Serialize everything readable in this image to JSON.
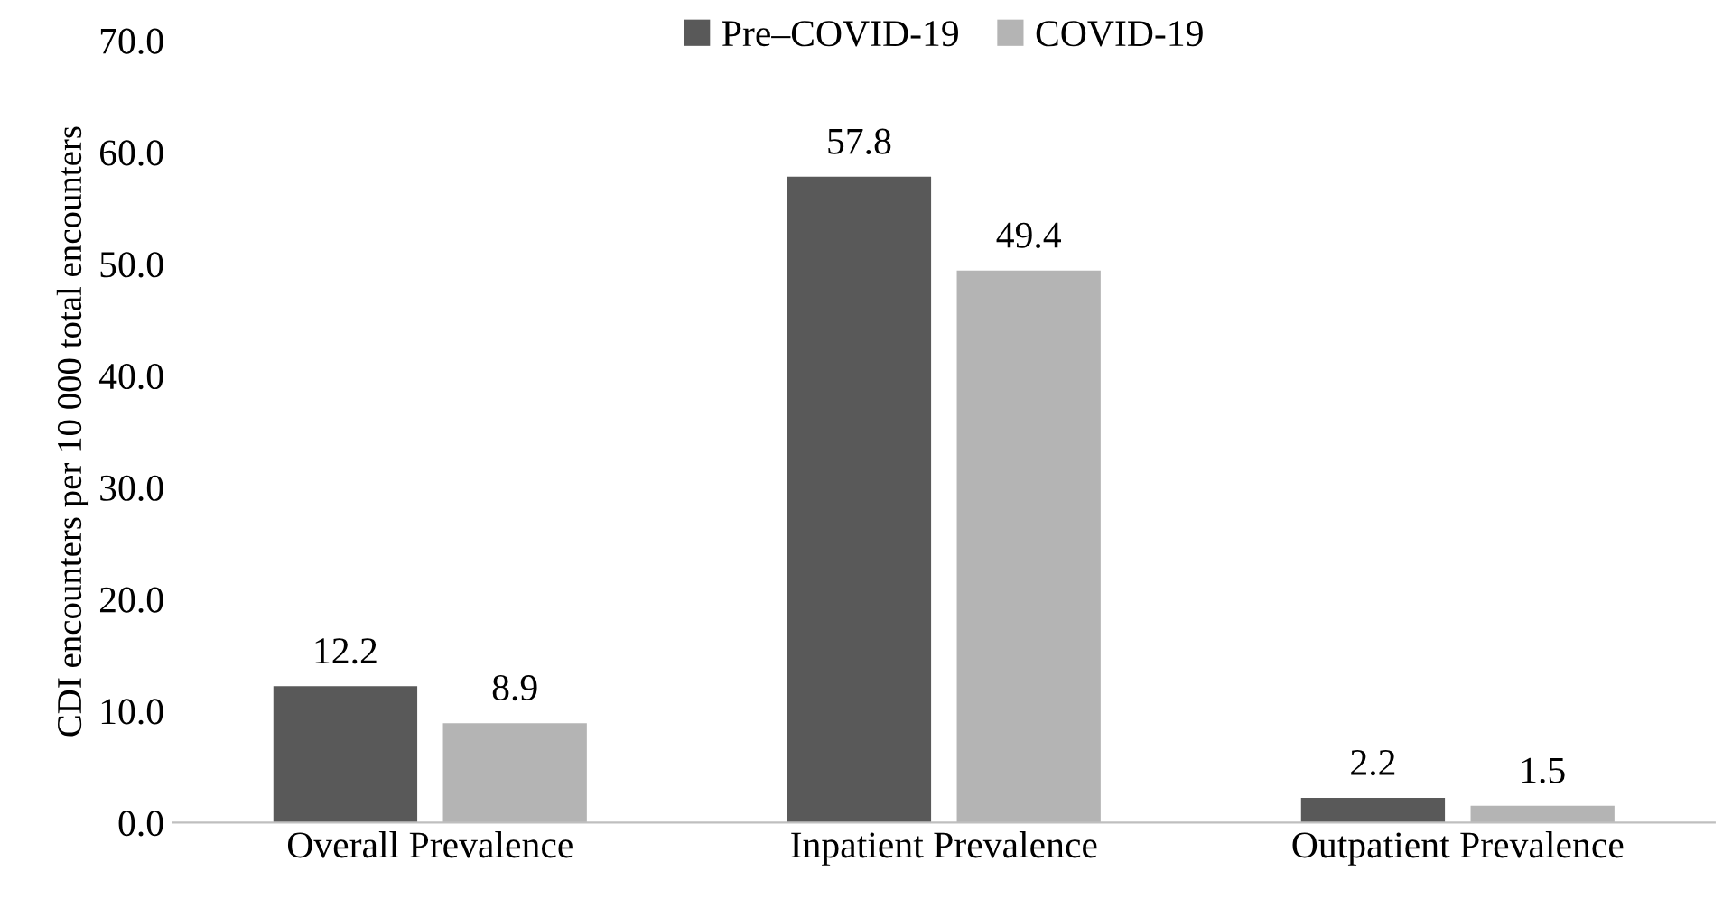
{
  "chart_data": {
    "type": "bar",
    "ylabel": "CDI encounters per 10 000 total encounters",
    "categories": [
      "Overall Prevalence",
      "Inpatient Prevalence",
      "Outpatient Prevalence"
    ],
    "series": [
      {
        "name": "Pre–COVID-19",
        "color": "#595959",
        "values": [
          12.2,
          57.8,
          2.2
        ]
      },
      {
        "name": "COVID-19",
        "color": "#b4b4b4",
        "values": [
          8.9,
          49.4,
          1.5
        ]
      }
    ],
    "ylim": [
      0,
      70
    ],
    "yticks": [
      {
        "value": 0,
        "label": "0.0"
      },
      {
        "value": 10,
        "label": "10.0"
      },
      {
        "value": 20,
        "label": "20.0"
      },
      {
        "value": 30,
        "label": "30.0"
      },
      {
        "value": 40,
        "label": "40.0"
      },
      {
        "value": 50,
        "label": "50.0"
      },
      {
        "value": 60,
        "label": "60.0"
      },
      {
        "value": 70,
        "label": "70.0"
      }
    ],
    "data_labels": true,
    "grid": false,
    "legend": "top"
  }
}
